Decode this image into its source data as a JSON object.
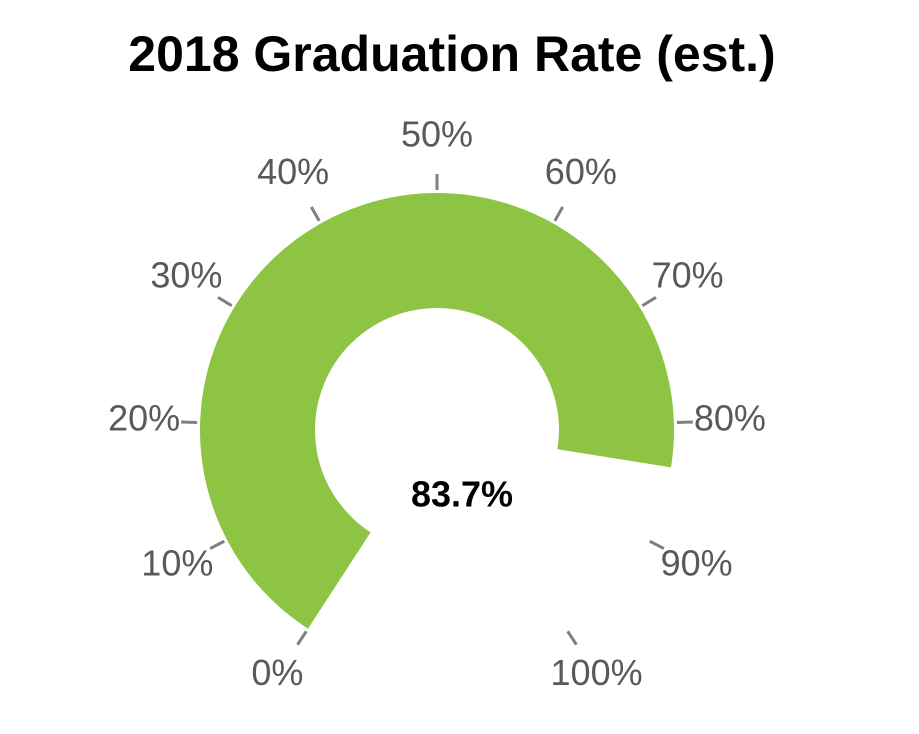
{
  "chart_data": {
    "type": "gauge",
    "title": "2018 Graduation Rate (est.)",
    "values": [
      83.7
    ],
    "value_labels": [
      "83.7%"
    ],
    "color": "#8dc443",
    "ylim": [
      0,
      100
    ],
    "yticks": [
      {
        "value": 0,
        "label": "0%"
      },
      {
        "value": 10,
        "label": "10%"
      },
      {
        "value": 20,
        "label": "20%"
      },
      {
        "value": 30,
        "label": "30%"
      },
      {
        "value": 40,
        "label": "40%"
      },
      {
        "value": 50,
        "label": "50%"
      },
      {
        "value": 60,
        "label": "60%"
      },
      {
        "value": 70,
        "label": "70%"
      },
      {
        "value": 80,
        "label": "80%"
      },
      {
        "value": 90,
        "label": "90%"
      },
      {
        "value": 100,
        "label": "100%"
      }
    ]
  }
}
